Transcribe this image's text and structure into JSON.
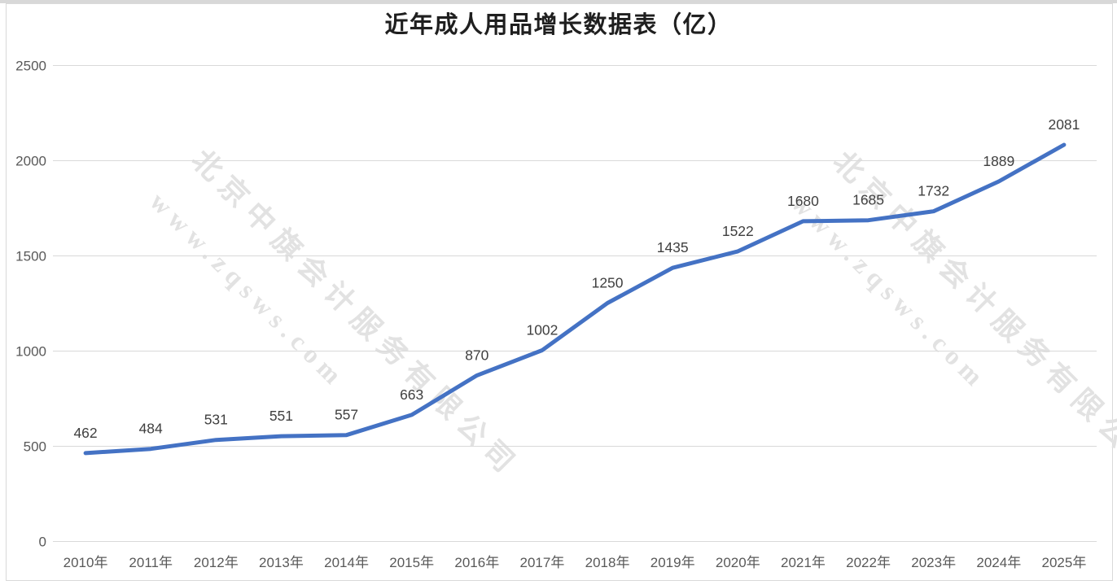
{
  "chart_data": {
    "type": "line",
    "title": "近年成人用品增长数据表（亿）",
    "categories": [
      "2010年",
      "2011年",
      "2012年",
      "2013年",
      "2014年",
      "2015年",
      "2016年",
      "2017年",
      "2018年",
      "2019年",
      "2020年",
      "2021年",
      "2022年",
      "2023年",
      "2024年",
      "2025年"
    ],
    "values": [
      462,
      484,
      531,
      551,
      557,
      663,
      870,
      1002,
      1250,
      1435,
      1522,
      1680,
      1685,
      1732,
      1889,
      2081
    ],
    "xlabel": "",
    "ylabel": "",
    "ylim": [
      0,
      2500
    ],
    "yticks": [
      0,
      500,
      1000,
      1500,
      2000,
      2500
    ],
    "grid": true,
    "legend": "none",
    "data_labels": "above-points",
    "colors": {
      "line": "#4472c4",
      "data_label": "#3f3f3f",
      "axis_label": "#595959",
      "gridline": "#d9d9d9",
      "title": "#1f1f1f",
      "watermark": "#e2e2e2",
      "frame_border": "#d9d9d9"
    }
  },
  "watermark": {
    "company": "北京中旗会计服务有限公司",
    "url": "www.zqsws.com"
  }
}
